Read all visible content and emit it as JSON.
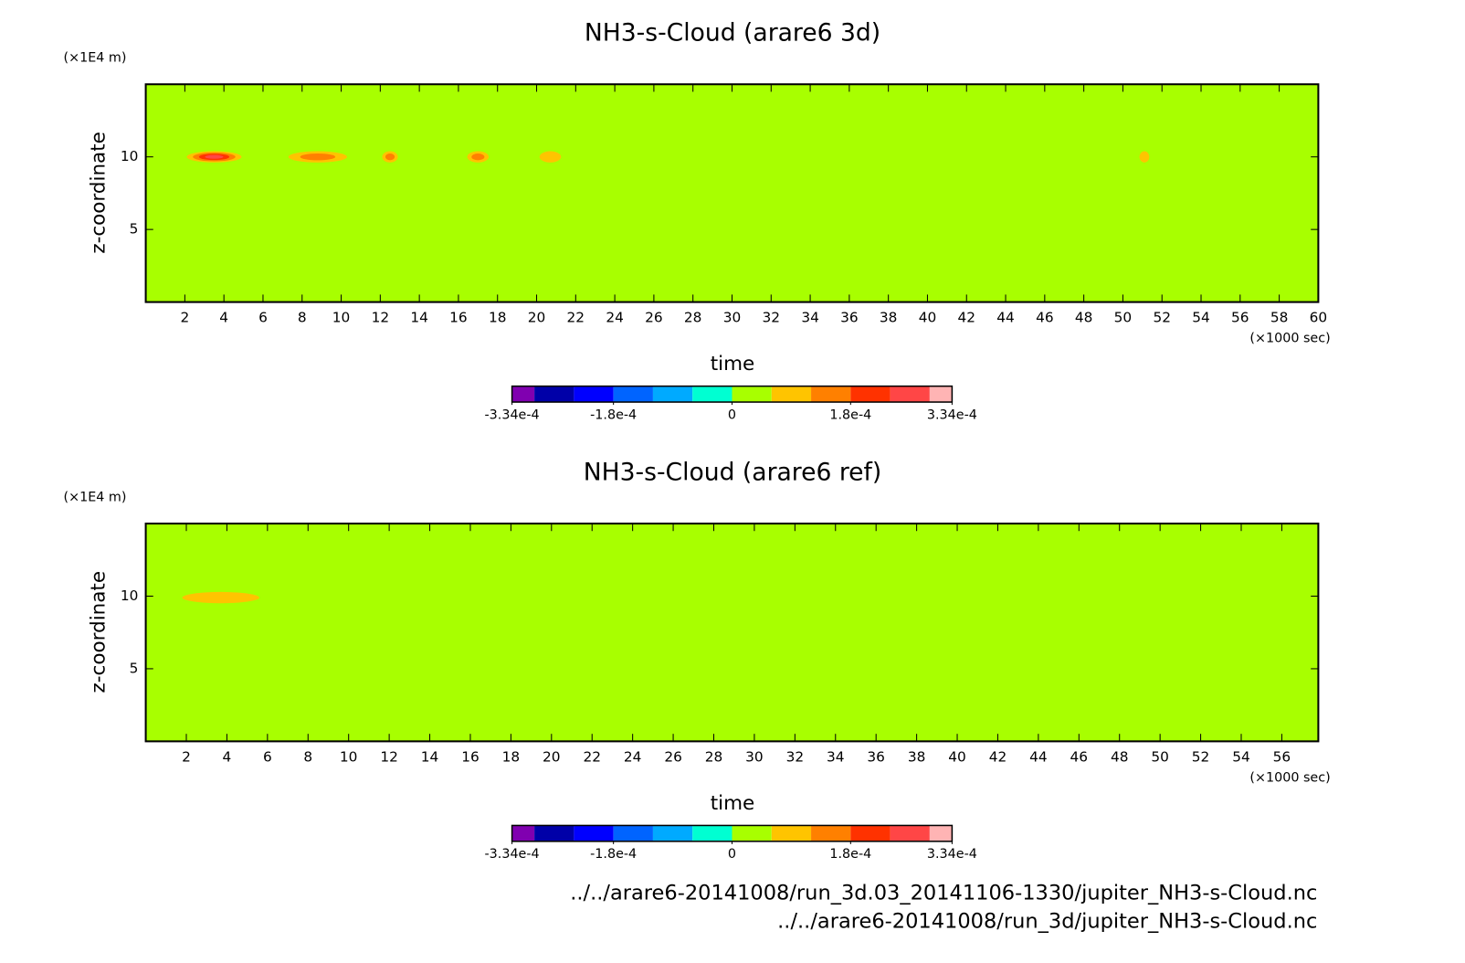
{
  "chart_data": [
    {
      "type": "contour",
      "title": "NH3-s-Cloud (arare6 3d)",
      "x_label": "time",
      "y_label": "z-coordinate",
      "x_unit": "(×1000 sec)",
      "y_unit": "(×1E4 m)",
      "xlim": [
        0,
        60
      ],
      "xticks": [
        2,
        4,
        6,
        8,
        10,
        12,
        14,
        16,
        18,
        20,
        22,
        24,
        26,
        28,
        30,
        32,
        34,
        36,
        38,
        40,
        42,
        44,
        46,
        48,
        50,
        52,
        54,
        56,
        58,
        60
      ],
      "ylim": [
        0,
        15
      ],
      "yticks": [
        5,
        10
      ],
      "background_value": 0,
      "features": [
        {
          "x": 3.5,
          "y": 10,
          "width": 2.8,
          "value": 0.00026
        },
        {
          "x": 8.8,
          "y": 10,
          "width": 3.0,
          "value": 0.00015
        },
        {
          "x": 12.5,
          "y": 10,
          "width": 0.8,
          "value": 0.00013
        },
        {
          "x": 17,
          "y": 10,
          "width": 1.1,
          "value": 0.00013
        },
        {
          "x": 20.7,
          "y": 10,
          "width": 1.1,
          "value": 9e-05
        },
        {
          "x": 51.1,
          "y": 10,
          "width": 0.5,
          "value": 7e-05
        }
      ],
      "colorbar": {
        "levels": [
          -0.000334,
          -0.0003,
          -0.00024,
          -0.00018,
          -0.00012,
          -6e-05,
          0,
          6e-05,
          0.00012,
          0.00018,
          0.00024,
          0.0003,
          0.000334
        ],
        "colors": [
          "#8000b0",
          "#0000a8",
          "#0000ff",
          "#0064ff",
          "#00aaff",
          "#00ffd2",
          "#a8ff00",
          "#ffc400",
          "#ff8000",
          "#ff3200",
          "#ff4646",
          "#ffb4b4"
        ],
        "ticks": [
          {
            "value": -0.000334,
            "label": "-3.34e-4"
          },
          {
            "value": -0.00018,
            "label": "-1.8e-4"
          },
          0,
          {
            "value": 0.00018,
            "label": "1.8e-4"
          },
          {
            "value": 0.000334,
            "label": "3.34e-4"
          }
        ]
      }
    },
    {
      "type": "contour",
      "title": "NH3-s-Cloud (arare6 ref)",
      "x_label": "time",
      "y_label": "z-coordinate",
      "x_unit": "(×1000 sec)",
      "y_unit": "(×1E4 m)",
      "xlim": [
        0,
        57.8
      ],
      "xticks": [
        2,
        4,
        6,
        8,
        10,
        12,
        14,
        16,
        18,
        20,
        22,
        24,
        26,
        28,
        30,
        32,
        34,
        36,
        38,
        40,
        42,
        44,
        46,
        48,
        50,
        52,
        54,
        56
      ],
      "ylim": [
        0,
        15
      ],
      "yticks": [
        5,
        10
      ],
      "background_value": 0,
      "features": [
        {
          "x": 3.7,
          "y": 9.9,
          "width": 3.8,
          "value": 7e-05
        }
      ],
      "colorbar": {
        "levels": [
          -0.000334,
          -0.0003,
          -0.00024,
          -0.00018,
          -0.00012,
          -6e-05,
          0,
          6e-05,
          0.00012,
          0.00018,
          0.00024,
          0.0003,
          0.000334
        ],
        "colors": [
          "#8000b0",
          "#0000a8",
          "#0000ff",
          "#0064ff",
          "#00aaff",
          "#00ffd2",
          "#a8ff00",
          "#ffc400",
          "#ff8000",
          "#ff3200",
          "#ff4646",
          "#ffb4b4"
        ],
        "ticks": [
          {
            "value": -0.000334,
            "label": "-3.34e-4"
          },
          {
            "value": -0.00018,
            "label": "-1.8e-4"
          },
          0,
          {
            "value": 0.00018,
            "label": "1.8e-4"
          },
          {
            "value": 0.000334,
            "label": "3.34e-4"
          }
        ]
      }
    }
  ],
  "footer": [
    "../../arare6-20141008/run_3d.03_20141106-1330/jupiter_NH3-s-Cloud.nc",
    "../../arare6-20141008/run_3d/jupiter_NH3-s-Cloud.nc"
  ]
}
